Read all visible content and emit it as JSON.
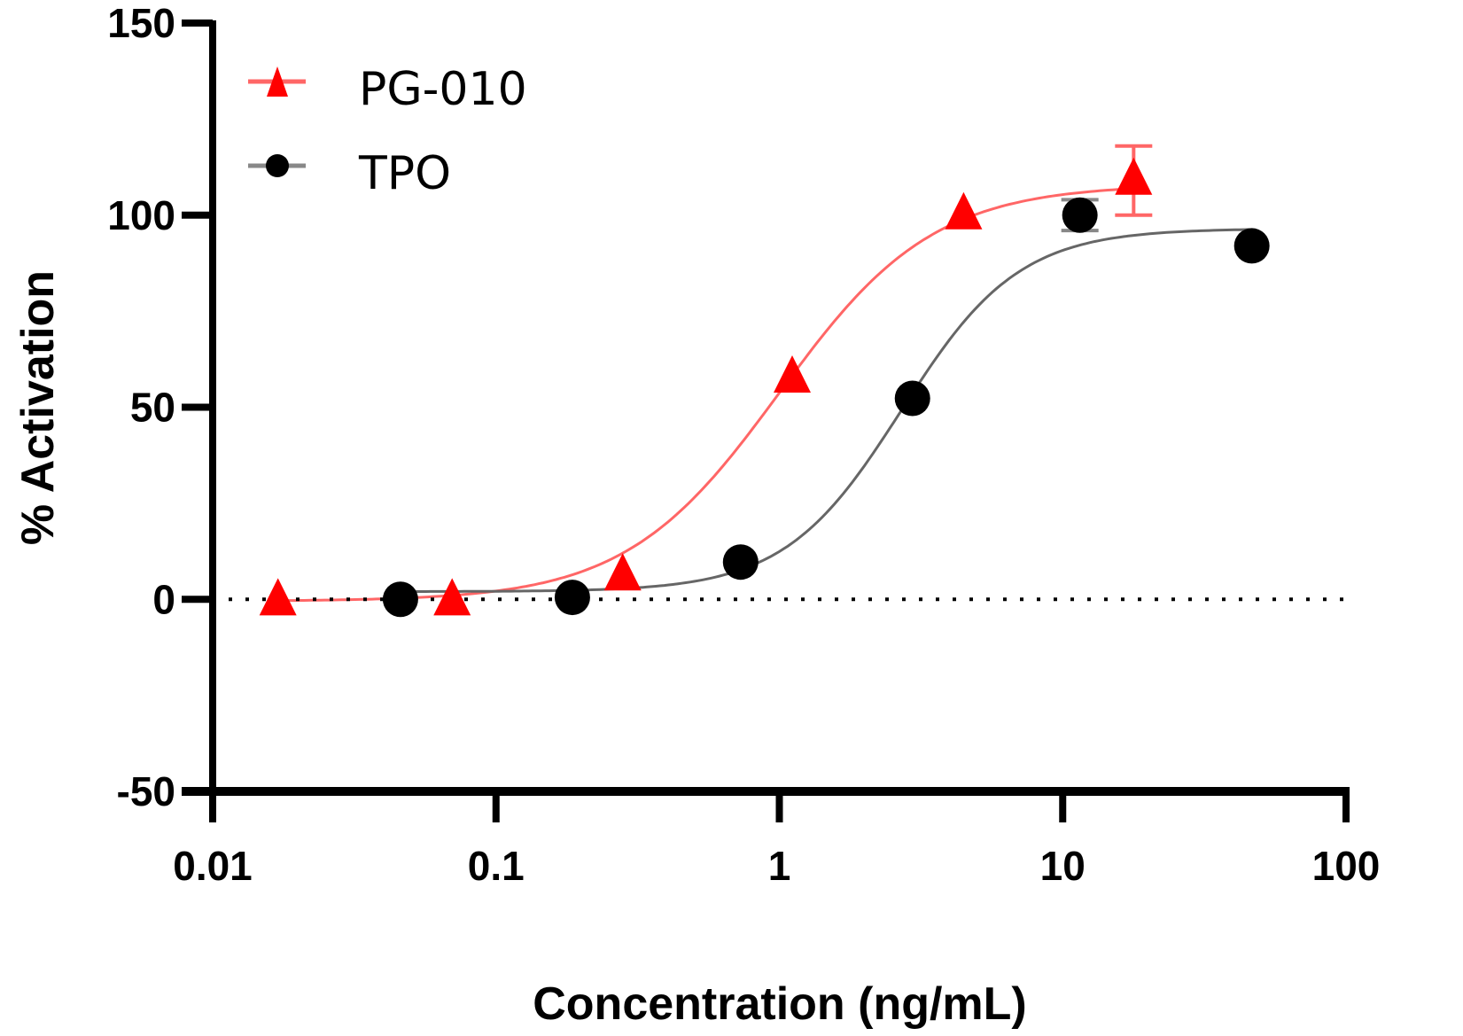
{
  "chart_data": {
    "type": "scatter",
    "title": "",
    "xlabel": "Concentration (ng/mL)",
    "ylabel": "% Activation",
    "xscale": "log",
    "xlim": [
      0.01,
      100
    ],
    "ylim": [
      -50,
      150
    ],
    "x_ticks": [
      0.01,
      0.1,
      1,
      10,
      100
    ],
    "x_tick_labels": [
      "0.01",
      "0.1",
      "1",
      "10",
      "100"
    ],
    "y_ticks": [
      -50,
      0,
      50,
      100,
      150
    ],
    "y_tick_labels": [
      "-50",
      "0",
      "50",
      "100",
      "150"
    ],
    "reference_line": {
      "y": 0,
      "style": "dotted"
    },
    "grid": false,
    "legend_position": "top-left",
    "series": [
      {
        "name": "PG-010",
        "color": "#ff0000",
        "curve_color": "#ff6666",
        "marker": "triangle",
        "x": [
          0.017,
          0.07,
          0.28,
          1.11,
          4.47,
          17.8
        ],
        "y": [
          -0.5,
          -0.5,
          6,
          57.5,
          100,
          109
        ],
        "error": [
          null,
          null,
          null,
          null,
          null,
          [
            100,
            118
          ]
        ],
        "fit": {
          "model": "4PL",
          "bottom": -0.5,
          "top": 108,
          "ec50": 1.0,
          "hill": 1.6
        }
      },
      {
        "name": "TPO",
        "color": "#000000",
        "curve_color": "#666666",
        "marker": "circle",
        "x": [
          0.046,
          0.186,
          0.73,
          2.95,
          11.5,
          46.5
        ],
        "y": [
          0,
          0.5,
          9.7,
          52.3,
          100,
          92
        ],
        "error": [
          null,
          null,
          null,
          null,
          [
            96,
            104
          ],
          null
        ],
        "fit": {
          "model": "4PL",
          "bottom": 2,
          "top": 96.5,
          "ec50": 2.7,
          "hill": 2.1
        }
      }
    ]
  }
}
